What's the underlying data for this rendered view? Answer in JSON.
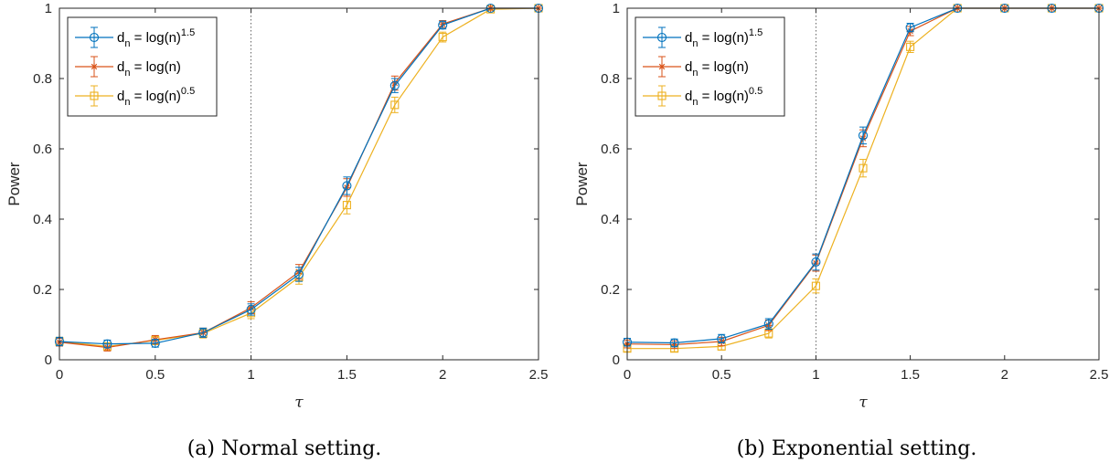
{
  "chart_data": [
    {
      "type": "line",
      "panel": "a",
      "caption": "(a) Normal setting.",
      "xlabel": "τ",
      "ylabel": "Power",
      "xlim": [
        0,
        2.5
      ],
      "ylim": [
        0,
        1
      ],
      "xticks": [
        "0",
        "0.5",
        "1",
        "1.5",
        "2",
        "2.5"
      ],
      "yticks": [
        "0",
        "0.2",
        "0.4",
        "0.6",
        "0.8",
        "1"
      ],
      "reference_line_x": 1,
      "legend_position": "top-left",
      "x": [
        0,
        0.25,
        0.5,
        0.75,
        1,
        1.25,
        1.5,
        1.75,
        2,
        2.25,
        2.5
      ],
      "series": [
        {
          "name": "d_n = log(n)^1.5",
          "label_main": "d",
          "label_sub": "n",
          "label_rest": " = log(n)",
          "label_sup": "1.5",
          "color": "#0072BD",
          "marker": "circle",
          "values": [
            0.052,
            0.045,
            0.047,
            0.077,
            0.143,
            0.243,
            0.495,
            0.78,
            0.952,
            1.0,
            1.0
          ],
          "error": [
            0.012,
            0.011,
            0.011,
            0.013,
            0.016,
            0.02,
            0.025,
            0.02,
            0.011,
            0.001,
            0.001
          ]
        },
        {
          "name": "d_n = log(n)",
          "label_main": "d",
          "label_sub": "n",
          "label_rest": " = log(n)",
          "label_sup": "",
          "color": "#D95319",
          "marker": "star",
          "values": [
            0.05,
            0.035,
            0.057,
            0.077,
            0.148,
            0.25,
            0.49,
            0.787,
            0.955,
            1.0,
            1.0
          ],
          "error": [
            0.011,
            0.01,
            0.012,
            0.013,
            0.017,
            0.021,
            0.025,
            0.02,
            0.01,
            0.001,
            0.001
          ]
        },
        {
          "name": "d_n = log(n)^0.5",
          "label_main": "d",
          "label_sub": "n",
          "label_rest": " = log(n)",
          "label_sup": "0.5",
          "color": "#EDB120",
          "marker": "square",
          "values": [
            0.052,
            0.038,
            0.055,
            0.075,
            0.133,
            0.235,
            0.44,
            0.725,
            0.918,
            0.997,
            1.0
          ],
          "error": [
            0.012,
            0.01,
            0.012,
            0.013,
            0.016,
            0.02,
            0.025,
            0.022,
            0.014,
            0.003,
            0.001
          ]
        }
      ]
    },
    {
      "type": "line",
      "panel": "b",
      "caption": "(b) Exponential setting.",
      "xlabel": "τ",
      "ylabel": "Power",
      "xlim": [
        0,
        2.5
      ],
      "ylim": [
        0,
        1
      ],
      "xticks": [
        "0",
        "0.5",
        "1",
        "1.5",
        "2",
        "2.5"
      ],
      "yticks": [
        "0",
        "0.2",
        "0.4",
        "0.6",
        "0.8",
        "1"
      ],
      "reference_line_x": 1,
      "legend_position": "top-left",
      "x": [
        0,
        0.25,
        0.5,
        0.75,
        1,
        1.25,
        1.5,
        1.75,
        2,
        2.25,
        2.5
      ],
      "series": [
        {
          "name": "d_n = log(n)^1.5",
          "label_main": "d",
          "label_sub": "n",
          "label_rest": " = log(n)",
          "label_sup": "1.5",
          "color": "#0072BD",
          "marker": "circle",
          "values": [
            0.05,
            0.048,
            0.06,
            0.102,
            0.278,
            0.638,
            0.945,
            1.0,
            1.0,
            1.0,
            1.0
          ],
          "error": [
            0.011,
            0.011,
            0.012,
            0.015,
            0.023,
            0.024,
            0.012,
            0.001,
            0.001,
            0.001,
            0.001
          ]
        },
        {
          "name": "d_n = log(n)",
          "label_main": "d",
          "label_sub": "n",
          "label_rest": " = log(n)",
          "label_sup": "",
          "color": "#D95319",
          "marker": "star",
          "values": [
            0.045,
            0.043,
            0.052,
            0.098,
            0.275,
            0.63,
            0.935,
            1.0,
            1.0,
            1.0,
            1.0
          ],
          "error": [
            0.011,
            0.011,
            0.012,
            0.015,
            0.023,
            0.024,
            0.013,
            0.001,
            0.001,
            0.001,
            0.001
          ]
        },
        {
          "name": "d_n = log(n)^0.5",
          "label_main": "d",
          "label_sub": "n",
          "label_rest": " = log(n)",
          "label_sup": "0.5",
          "color": "#EDB120",
          "marker": "square",
          "values": [
            0.032,
            0.032,
            0.038,
            0.075,
            0.21,
            0.545,
            0.89,
            1.0,
            1.0,
            1.0,
            1.0
          ],
          "error": [
            0.009,
            0.009,
            0.01,
            0.013,
            0.02,
            0.025,
            0.016,
            0.001,
            0.001,
            0.001,
            0.001
          ]
        }
      ]
    }
  ]
}
